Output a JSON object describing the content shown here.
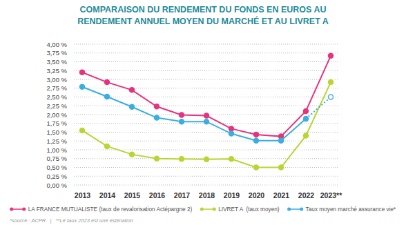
{
  "chart_data": {
    "type": "line",
    "title": "COMPARAISON DU RENDEMENT DU FONDS EN EUROS AU\nRENDEMENT ANNUEL MOYEN DU MARCHÉ ET AU LIVRET A",
    "categories": [
      "2013",
      "2014",
      "2015",
      "2016",
      "2017",
      "2018",
      "2019",
      "2020",
      "2021",
      "2022",
      "2023**"
    ],
    "series": [
      {
        "name": "LA FRANCE MUTUALISTE (taux de revalorisation Actépargne 2)",
        "color": "#e5347d",
        "marker": "circle",
        "line_style": "solid",
        "values": [
          3.2,
          2.92,
          2.7,
          2.23,
          1.99,
          1.97,
          1.6,
          1.43,
          1.38,
          2.1,
          3.67
        ]
      },
      {
        "name": "LIVRET A  (taux moyen)",
        "color": "#b9d531",
        "marker": "circle",
        "line_style": "solid",
        "values": [
          1.55,
          1.1,
          0.87,
          0.75,
          0.74,
          0.73,
          0.74,
          0.5,
          0.5,
          1.4,
          2.92
        ]
      },
      {
        "name": "Taux moyen marché assurance vie*",
        "color": "#3aaee0",
        "marker": "circle",
        "line_style": "dotted_last",
        "values": [
          2.79,
          2.51,
          2.22,
          1.91,
          1.8,
          1.8,
          1.46,
          1.26,
          1.26,
          1.88,
          2.5
        ]
      }
    ],
    "ylim": [
      0,
      4
    ],
    "yticks": [
      {
        "value": 0,
        "label": "0,00 %"
      },
      {
        "value": 0.25,
        "label": "0,25 %"
      },
      {
        "value": 0.5,
        "label": "0,50 %"
      },
      {
        "value": 0.75,
        "label": "0,75 %"
      },
      {
        "value": 1,
        "label": "1,00 %"
      },
      {
        "value": 1.25,
        "label": "1,25 %"
      },
      {
        "value": 1.5,
        "label": "1,50 %"
      },
      {
        "value": 1.75,
        "label": "1,75 %"
      },
      {
        "value": 2,
        "label": "2,00 %"
      },
      {
        "value": 2.25,
        "label": "2,25 %"
      },
      {
        "value": 2.5,
        "label": "2,50 %"
      },
      {
        "value": 2.75,
        "label": "2,75 %"
      },
      {
        "value": 3,
        "label": "3,00 %"
      },
      {
        "value": 3.25,
        "label": "3,25 %"
      },
      {
        "value": 3.5,
        "label": "3,50 %"
      },
      {
        "value": 3.75,
        "label": "3,75 %"
      },
      {
        "value": 4,
        "label": "4,00 %"
      }
    ],
    "grid": true,
    "legend": "bottom",
    "annotations": [
      "*source : ACPR   |   **Le taux 2023 est une estimation"
    ]
  }
}
